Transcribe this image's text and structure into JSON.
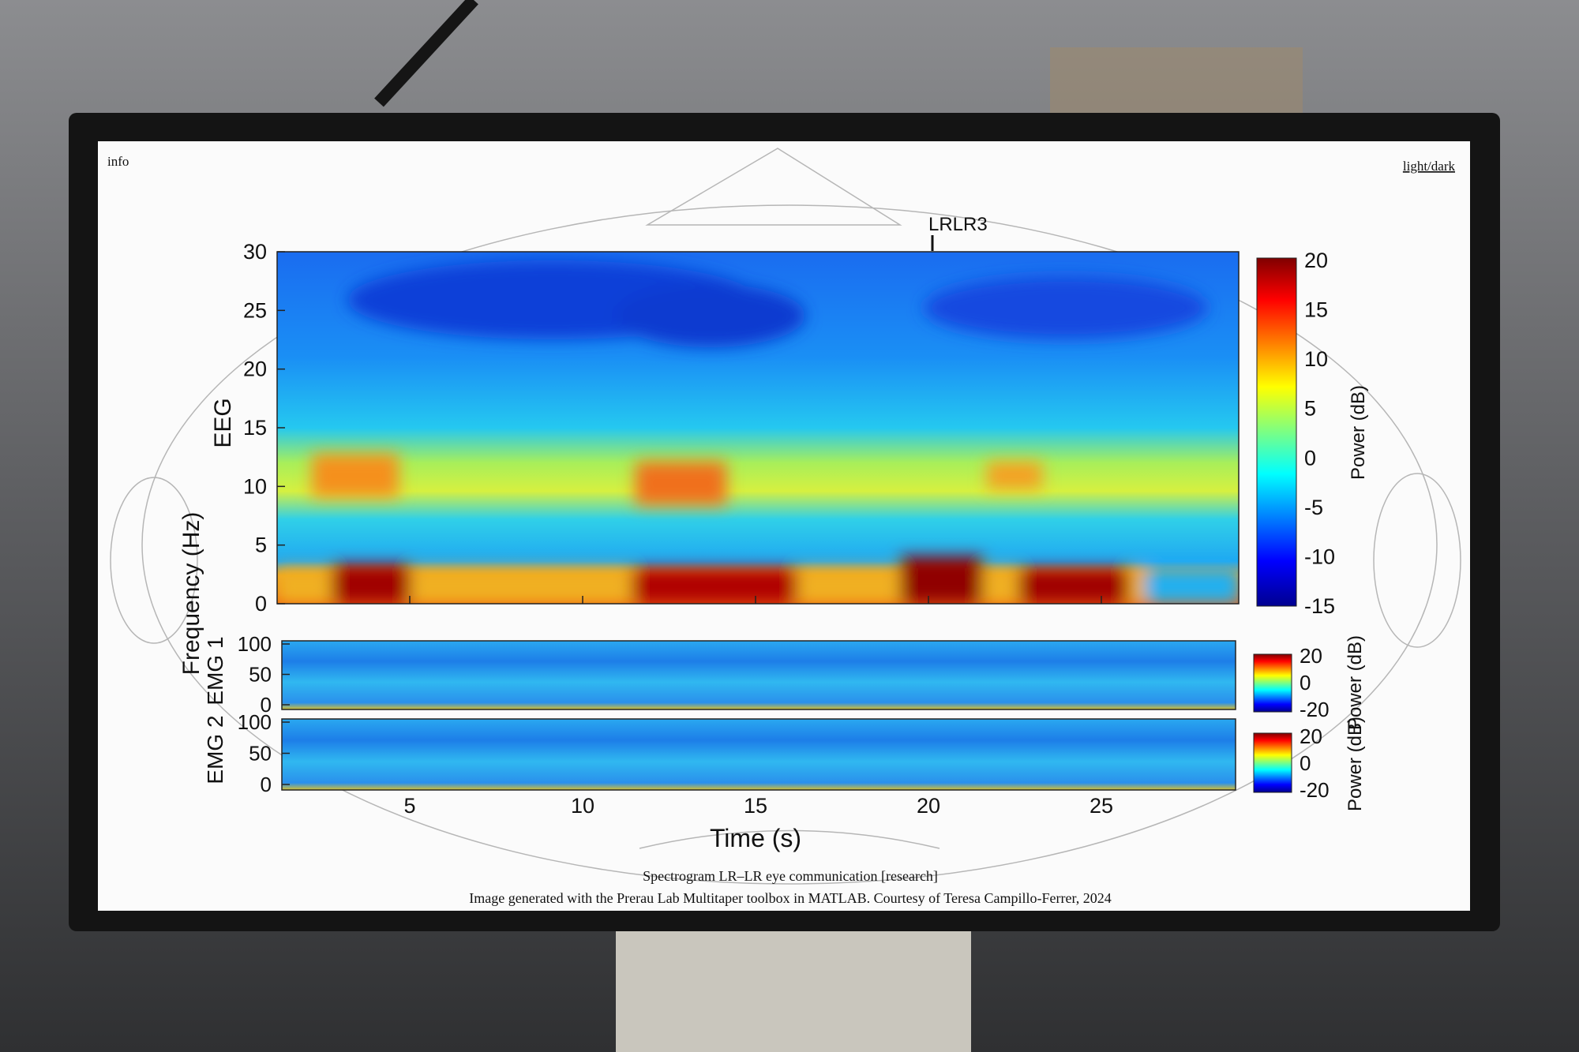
{
  "header": {
    "left": "info",
    "right": "light/dark"
  },
  "figure": {
    "annotation": "LRLR3",
    "ylabel": "Frequency (Hz)",
    "panels": [
      {
        "label": "EEG",
        "yticks": [
          0,
          5,
          10,
          15,
          20,
          25,
          30
        ],
        "colorbar_ticks": [
          20,
          15,
          10,
          5,
          0,
          -5,
          -10,
          -15
        ],
        "colorbar_label": "Power (dB)"
      },
      {
        "label": "EMG 1",
        "yticks": [
          0,
          50,
          100
        ],
        "colorbar_ticks": [
          20,
          0,
          -20
        ],
        "colorbar_label": "Power (dB)"
      },
      {
        "label": "EMG 2",
        "yticks": [
          0,
          50,
          100
        ],
        "colorbar_ticks": [
          20,
          0,
          -20
        ],
        "colorbar_label": "Power (dB)"
      }
    ],
    "xticks": [
      5,
      10,
      15,
      20,
      25
    ],
    "xlabel": "Time (s)"
  },
  "caption": {
    "title": "Spectrogram LR–LR eye communication [research]",
    "credit": "Image generated with the Prerau Lab Multitaper toolbox in MATLAB. Courtesy of Teresa Campillo-Ferrer, 2024"
  }
}
